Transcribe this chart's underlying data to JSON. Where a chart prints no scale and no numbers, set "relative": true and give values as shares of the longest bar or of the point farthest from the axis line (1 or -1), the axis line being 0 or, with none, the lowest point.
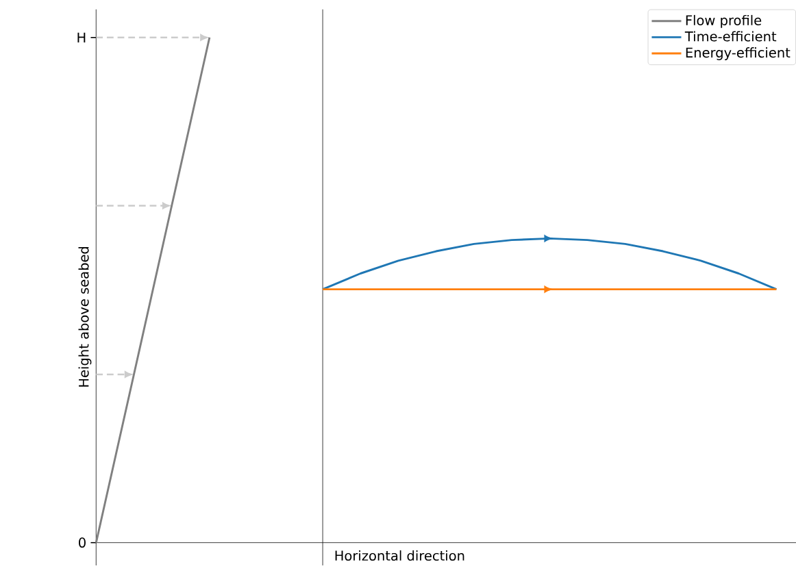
{
  "chart_data": [
    {
      "type": "line",
      "ylabel": "Height above seabed",
      "categories": [
        null,
        null,
        null,
        null
      ],
      "relative": true,
      "annotations": [
        "0",
        "H"
      ],
      "series": [
        {
          "name": "Flow profile",
          "color": "#808080",
          "values": [
            0,
            0.333,
            0.667,
            1
          ]
        }
      ]
    },
    {
      "type": "line",
      "xlabel": "Horizontal direction",
      "categories": [
        null,
        null,
        null,
        null,
        null,
        null,
        null,
        null,
        null,
        null,
        null,
        null,
        null
      ],
      "relative": true,
      "legend": "top right",
      "series": [
        {
          "name": "Time-efficient",
          "color": "#1f77b4",
          "values": [
            0.833,
            0.885,
            0.927,
            0.958,
            0.982,
            0.995,
            1,
            0.995,
            0.982,
            0.958,
            0.927,
            0.885,
            0.833
          ]
        },
        {
          "name": "Energy-efficient",
          "color": "#ff7f0e",
          "values": [
            0.833,
            0.833,
            0.833,
            0.833,
            0.833,
            0.833,
            0.833,
            0.833,
            0.833,
            0.833,
            0.833,
            0.833,
            0.833
          ]
        }
      ]
    }
  ]
}
